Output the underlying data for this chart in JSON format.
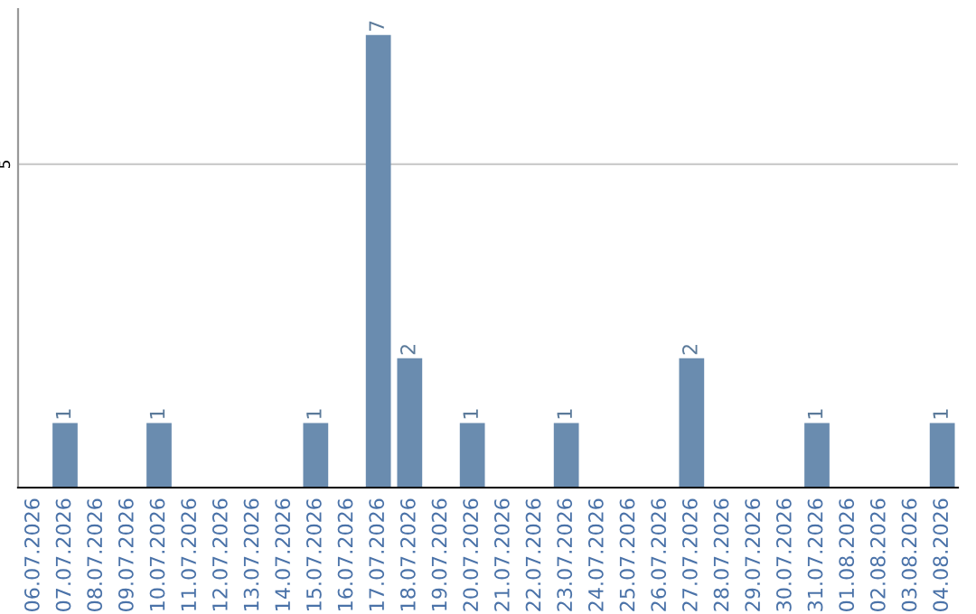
{
  "chart_data": {
    "type": "bar",
    "categories": [
      "06.07.2026",
      "07.07.2026",
      "08.07.2026",
      "09.07.2026",
      "10.07.2026",
      "11.07.2026",
      "12.07.2026",
      "13.07.2026",
      "14.07.2026",
      "15.07.2026",
      "16.07.2026",
      "17.07.2026",
      "18.07.2026",
      "19.07.2026",
      "20.07.2026",
      "21.07.2026",
      "22.07.2026",
      "23.07.2026",
      "24.07.2026",
      "25.07.2026",
      "26.07.2026",
      "27.07.2026",
      "28.07.2026",
      "29.07.2026",
      "30.07.2026",
      "31.07.2026",
      "01.08.2026",
      "02.08.2026",
      "03.08.2026",
      "04.08.2026"
    ],
    "values": [
      0,
      1,
      0,
      0,
      1,
      0,
      0,
      0,
      0,
      1,
      0,
      7,
      2,
      0,
      1,
      0,
      0,
      1,
      0,
      0,
      0,
      2,
      0,
      0,
      0,
      1,
      0,
      0,
      0,
      1
    ],
    "value_labels": [
      null,
      "1",
      null,
      null,
      "1",
      null,
      null,
      null,
      null,
      "1",
      null,
      "7",
      "2",
      null,
      "1",
      null,
      null,
      "1",
      null,
      null,
      null,
      "2",
      null,
      null,
      null,
      "1",
      null,
      null,
      null,
      "1"
    ],
    "color": "#6a8caf",
    "ylim": [
      0,
      7.4
    ],
    "yticks": [
      5
    ],
    "grid": "y"
  }
}
